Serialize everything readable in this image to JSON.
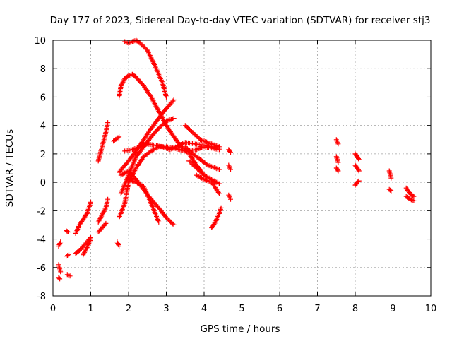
{
  "chart_data": {
    "type": "scatter",
    "title": "Day 177 of 2023, Sidereal Day-to-day VTEC variation (SDTVAR) for receiver stj3",
    "xlabel": "GPS time / hours",
    "ylabel": "SDTVAR / TECUs",
    "xlim": [
      0,
      10
    ],
    "ylim": [
      -8,
      10
    ],
    "x_ticks": [
      0,
      1,
      2,
      3,
      4,
      5,
      6,
      7,
      8,
      9,
      10
    ],
    "y_ticks": [
      -8,
      -6,
      -4,
      -2,
      0,
      2,
      4,
      6,
      8,
      10
    ],
    "grid": true,
    "legend": "none",
    "marker": "+",
    "color": "#ff0000",
    "tracks": [
      {
        "x": [
          0.15,
          0.2
        ],
        "y": [
          -4.5,
          -4.2
        ]
      },
      {
        "x": [
          0.15,
          0.2
        ],
        "y": [
          -5.8,
          -6.3
        ]
      },
      {
        "x": [
          0.15,
          0.18
        ],
        "y": [
          -6.7,
          -6.8
        ]
      },
      {
        "x": [
          0.35,
          0.4
        ],
        "y": [
          -3.4,
          -3.5
        ]
      },
      {
        "x": [
          0.35,
          0.42
        ],
        "y": [
          -5.2,
          -5.1
        ]
      },
      {
        "x": [
          0.38,
          0.45
        ],
        "y": [
          -6.5,
          -6.6
        ]
      },
      {
        "x": [
          0.6,
          0.7,
          0.8,
          0.9,
          1.0
        ],
        "y": [
          -3.6,
          -3.0,
          -2.6,
          -2.2,
          -1.4
        ]
      },
      {
        "x": [
          0.6,
          0.7,
          0.8,
          0.9,
          1.0
        ],
        "y": [
          -5.0,
          -4.8,
          -4.5,
          -4.2,
          -3.9
        ]
      },
      {
        "x": [
          0.8,
          0.9,
          1.0
        ],
        "y": [
          -5.1,
          -4.6,
          -4.0
        ]
      },
      {
        "x": [
          1.2,
          1.3,
          1.4,
          1.45
        ],
        "y": [
          -2.8,
          -2.3,
          -1.8,
          -1.2
        ]
      },
      {
        "x": [
          1.2,
          1.3,
          1.4
        ],
        "y": [
          -3.5,
          -3.2,
          -2.9
        ]
      },
      {
        "x": [
          1.2,
          1.3,
          1.4,
          1.45
        ],
        "y": [
          1.5,
          2.5,
          3.5,
          4.2
        ]
      },
      {
        "x": [
          1.6,
          1.75
        ],
        "y": [
          2.9,
          3.2
        ]
      },
      {
        "x": [
          1.7,
          1.75
        ],
        "y": [
          -4.2,
          -4.5
        ]
      },
      {
        "x": [
          1.75,
          1.9,
          2.0,
          2.2,
          2.4,
          2.6,
          2.8,
          3.0,
          3.2,
          3.5,
          3.8,
          4.0,
          4.2,
          4.4
        ],
        "y": [
          -2.5,
          -1.5,
          0.0,
          1.0,
          1.8,
          2.2,
          2.5,
          2.5,
          2.4,
          2.2,
          2.3,
          2.5,
          2.4,
          2.3
        ]
      },
      {
        "x": [
          1.75,
          2.0,
          2.2,
          2.4,
          2.6,
          2.8,
          3.0,
          3.2
        ],
        "y": [
          0.7,
          1.5,
          2.2,
          3.0,
          3.8,
          4.5,
          5.2,
          5.8
        ]
      },
      {
        "x": [
          1.8,
          2.0,
          2.2,
          2.4,
          2.6,
          2.8,
          3.0,
          3.2
        ],
        "y": [
          -0.8,
          0.5,
          1.8,
          2.5,
          3.2,
          3.8,
          4.3,
          4.5
        ]
      },
      {
        "x": [
          1.9,
          2.1,
          2.3,
          2.5,
          2.7,
          2.9,
          3.1,
          3.5,
          4.0,
          4.4
        ],
        "y": [
          2.2,
          2.3,
          2.5,
          2.7,
          2.6,
          2.5,
          2.3,
          2.8,
          2.6,
          2.4
        ]
      },
      {
        "x": [
          1.8,
          2.0,
          2.2,
          2.4,
          2.6,
          2.8,
          3.0,
          3.2
        ],
        "y": [
          0.5,
          0.8,
          0.2,
          -0.5,
          -1.2,
          -1.8,
          -2.5,
          -3.0
        ]
      },
      {
        "x": [
          1.75,
          1.8,
          1.9,
          2.0,
          2.1,
          2.2,
          2.4,
          2.6,
          2.8,
          3.0,
          3.2,
          3.4,
          3.6,
          3.8,
          4.0
        ],
        "y": [
          6.0,
          6.8,
          7.3,
          7.5,
          7.6,
          7.4,
          6.8,
          6.0,
          5.0,
          4.0,
          3.2,
          2.5,
          2.0,
          1.2,
          0.5
        ]
      },
      {
        "x": [
          1.9,
          2.0,
          2.1,
          2.2,
          2.3,
          2.5,
          2.7,
          2.9,
          3.0
        ],
        "y": [
          9.9,
          9.8,
          9.9,
          10.0,
          9.8,
          9.3,
          8.2,
          7.0,
          6.0
        ]
      },
      {
        "x": [
          2.0,
          2.2,
          2.4,
          2.6,
          2.8
        ],
        "y": [
          0.2,
          0.0,
          -0.3,
          -1.5,
          -2.8
        ]
      },
      {
        "x": [
          3.5,
          3.7,
          3.9,
          4.1,
          4.3,
          4.4
        ],
        "y": [
          4.0,
          3.5,
          3.0,
          2.8,
          2.6,
          2.5
        ]
      },
      {
        "x": [
          3.5,
          3.7,
          3.9,
          4.1,
          4.3,
          4.4
        ],
        "y": [
          2.5,
          2.0,
          1.6,
          1.2,
          1.0,
          0.9
        ]
      },
      {
        "x": [
          3.6,
          3.8,
          4.0,
          4.2,
          4.4
        ],
        "y": [
          1.5,
          1.0,
          0.5,
          0.2,
          -0.1
        ]
      },
      {
        "x": [
          3.8,
          4.0,
          4.2,
          4.4
        ],
        "y": [
          0.5,
          0.2,
          0.0,
          -0.8
        ]
      },
      {
        "x": [
          4.2,
          4.3,
          4.4,
          4.45
        ],
        "y": [
          -3.2,
          -2.8,
          -2.2,
          -1.8
        ]
      },
      {
        "x": [
          4.65,
          4.7
        ],
        "y": [
          2.3,
          2.1
        ]
      },
      {
        "x": [
          4.65,
          4.7
        ],
        "y": [
          1.2,
          0.9
        ]
      },
      {
        "x": [
          4.65,
          4.7
        ],
        "y": [
          -0.9,
          -1.2
        ]
      },
      {
        "x": [
          7.5,
          7.55
        ],
        "y": [
          3.0,
          2.7
        ]
      },
      {
        "x": [
          7.5,
          7.55
        ],
        "y": [
          1.8,
          1.4
        ]
      },
      {
        "x": [
          7.5,
          7.55
        ],
        "y": [
          1.0,
          0.8
        ]
      },
      {
        "x": [
          8.0,
          8.05,
          8.1
        ],
        "y": [
          2.0,
          1.8,
          1.6
        ]
      },
      {
        "x": [
          8.0,
          8.05,
          8.1
        ],
        "y": [
          1.2,
          1.0,
          0.8
        ]
      },
      {
        "x": [
          8.0,
          8.05,
          8.1
        ],
        "y": [
          -0.2,
          0.0,
          0.1
        ]
      },
      {
        "x": [
          8.9,
          8.95
        ],
        "y": [
          0.8,
          0.3
        ]
      },
      {
        "x": [
          8.9,
          8.95
        ],
        "y": [
          -0.5,
          -0.6
        ]
      },
      {
        "x": [
          9.35,
          9.45,
          9.55
        ],
        "y": [
          -0.4,
          -0.8,
          -1.0
        ]
      },
      {
        "x": [
          9.35,
          9.45,
          9.55
        ],
        "y": [
          -1.0,
          -1.2,
          -1.3
        ]
      }
    ]
  }
}
